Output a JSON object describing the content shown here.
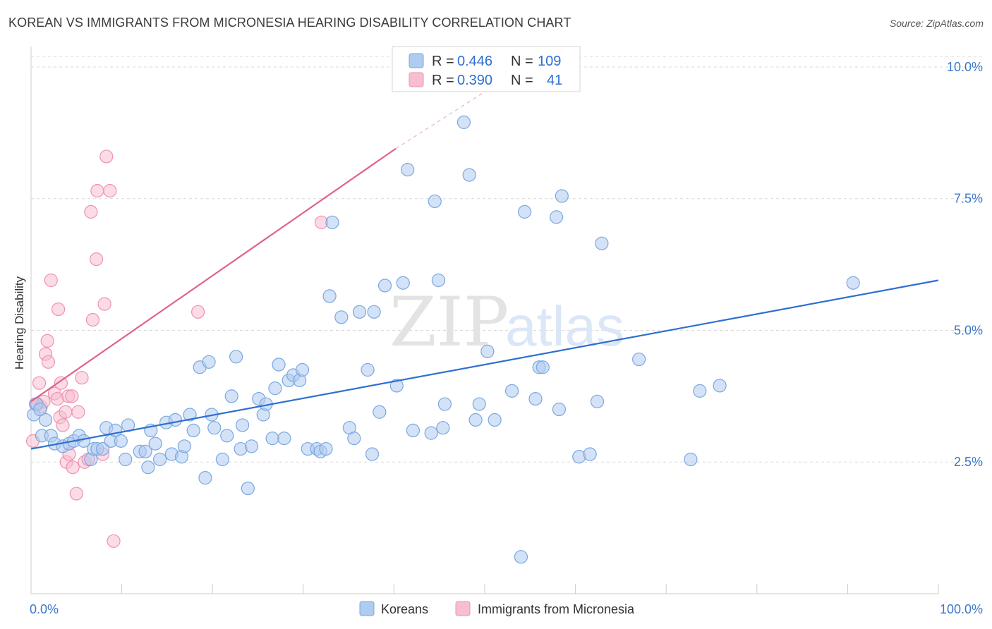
{
  "title": "KOREAN VS IMMIGRANTS FROM MICRONESIA HEARING DISABILITY CORRELATION CHART",
  "source": "Source: ZipAtlas.com",
  "watermark": {
    "zip": "ZIP",
    "atlas": "atlas"
  },
  "colors": {
    "blue_fill": "#aecbf0",
    "blue_stroke": "#7aa8e0",
    "blue_line": "#2f6fd0",
    "pink_fill": "#f7bdd0",
    "pink_stroke": "#ee92b0",
    "pink_line": "#e0628a",
    "grid": "#d9d9d9",
    "axis_text": "#3b78c9"
  },
  "legend": {
    "rows": [
      {
        "r_label": "R = ",
        "r_value": "0.446",
        "n_label": "N = ",
        "n_value": "109",
        "series": "Koreans"
      },
      {
        "r_label": "R = ",
        "r_value": "0.390",
        "n_label": "N = ",
        "n_value": "41",
        "series": "Immigrants from Micronesia"
      }
    ]
  },
  "chart_data": {
    "type": "scatter",
    "title": "KOREAN VS IMMIGRANTS FROM MICRONESIA HEARING DISABILITY CORRELATION CHART",
    "xlabel": "",
    "ylabel": "Hearing Disability",
    "xlim": [
      0,
      100
    ],
    "ylim": [
      0,
      10.2
    ],
    "x_tick_labels": [
      "0.0%",
      "100.0%"
    ],
    "y_ticks": [
      2.5,
      5.0,
      7.5,
      10.0
    ],
    "y_tick_labels": [
      "2.5%",
      "5.0%",
      "7.5%",
      "10.0%"
    ],
    "series": [
      {
        "name": "Koreans",
        "color": "#aecbf0",
        "trend": {
          "x": [
            0,
            100
          ],
          "y": [
            2.75,
            5.95
          ],
          "dashed_from": null
        },
        "points": [
          [
            0.3,
            3.4
          ],
          [
            0.6,
            3.6
          ],
          [
            1.0,
            3.5
          ],
          [
            1.2,
            3.0
          ],
          [
            1.6,
            3.3
          ],
          [
            2.2,
            3.0
          ],
          [
            2.6,
            2.85
          ],
          [
            3.5,
            2.8
          ],
          [
            4.2,
            2.85
          ],
          [
            4.7,
            2.9
          ],
          [
            5.3,
            3.0
          ],
          [
            5.8,
            2.9
          ],
          [
            6.6,
            2.55
          ],
          [
            6.9,
            2.75
          ],
          [
            7.3,
            2.75
          ],
          [
            7.9,
            2.75
          ],
          [
            8.3,
            3.15
          ],
          [
            8.8,
            2.9
          ],
          [
            9.3,
            3.1
          ],
          [
            9.9,
            2.9
          ],
          [
            10.4,
            2.55
          ],
          [
            10.7,
            3.2
          ],
          [
            12.0,
            2.7
          ],
          [
            12.6,
            2.7
          ],
          [
            12.9,
            2.4
          ],
          [
            13.2,
            3.1
          ],
          [
            13.7,
            2.85
          ],
          [
            14.2,
            2.55
          ],
          [
            14.9,
            3.25
          ],
          [
            15.5,
            2.65
          ],
          [
            15.9,
            3.3
          ],
          [
            16.6,
            2.6
          ],
          [
            16.9,
            2.8
          ],
          [
            17.5,
            3.4
          ],
          [
            17.9,
            3.1
          ],
          [
            18.6,
            4.3
          ],
          [
            19.2,
            2.2
          ],
          [
            19.6,
            4.4
          ],
          [
            19.9,
            3.4
          ],
          [
            20.2,
            3.15
          ],
          [
            21.1,
            2.55
          ],
          [
            21.6,
            3.0
          ],
          [
            22.1,
            3.75
          ],
          [
            22.6,
            4.5
          ],
          [
            23.1,
            2.75
          ],
          [
            23.3,
            3.2
          ],
          [
            23.9,
            2.0
          ],
          [
            24.3,
            2.8
          ],
          [
            25.1,
            3.7
          ],
          [
            25.6,
            3.4
          ],
          [
            25.9,
            3.6
          ],
          [
            26.6,
            2.95
          ],
          [
            26.9,
            3.9
          ],
          [
            27.3,
            4.35
          ],
          [
            27.9,
            2.95
          ],
          [
            28.4,
            4.05
          ],
          [
            28.9,
            4.15
          ],
          [
            29.6,
            4.05
          ],
          [
            29.9,
            4.25
          ],
          [
            30.5,
            2.75
          ],
          [
            31.5,
            2.75
          ],
          [
            31.9,
            2.7
          ],
          [
            32.5,
            2.75
          ],
          [
            32.9,
            5.65
          ],
          [
            33.2,
            7.05
          ],
          [
            34.2,
            5.25
          ],
          [
            35.1,
            3.15
          ],
          [
            35.6,
            2.95
          ],
          [
            36.2,
            5.35
          ],
          [
            37.1,
            4.25
          ],
          [
            37.6,
            2.65
          ],
          [
            37.8,
            5.35
          ],
          [
            38.4,
            3.45
          ],
          [
            39.0,
            5.85
          ],
          [
            40.3,
            3.95
          ],
          [
            41.0,
            5.9
          ],
          [
            41.5,
            8.05
          ],
          [
            42.1,
            3.1
          ],
          [
            44.1,
            3.05
          ],
          [
            44.5,
            7.45
          ],
          [
            44.9,
            5.95
          ],
          [
            45.4,
            3.15
          ],
          [
            45.6,
            3.6
          ],
          [
            47.7,
            8.95
          ],
          [
            48.3,
            7.95
          ],
          [
            49.0,
            3.3
          ],
          [
            49.4,
            3.6
          ],
          [
            50.3,
            4.6
          ],
          [
            51.1,
            3.3
          ],
          [
            53.0,
            3.85
          ],
          [
            54.0,
            0.7
          ],
          [
            54.4,
            7.25
          ],
          [
            55.6,
            3.7
          ],
          [
            56.0,
            4.3
          ],
          [
            56.4,
            4.3
          ],
          [
            57.9,
            7.15
          ],
          [
            58.2,
            3.5
          ],
          [
            58.5,
            7.55
          ],
          [
            60.4,
            2.6
          ],
          [
            61.6,
            2.65
          ],
          [
            62.4,
            3.65
          ],
          [
            62.9,
            6.65
          ],
          [
            67.0,
            4.45
          ],
          [
            72.7,
            2.55
          ],
          [
            73.7,
            3.85
          ],
          [
            75.9,
            3.95
          ],
          [
            90.6,
            5.9
          ]
        ]
      },
      {
        "name": "Immigrants from Micronesia",
        "color": "#f7bdd0",
        "trend": {
          "x": [
            0,
            40.2
          ],
          "y": [
            3.65,
            8.45
          ],
          "dashed_to": [
            50.2,
            9.55
          ]
        },
        "points": [
          [
            0.2,
            2.9
          ],
          [
            0.5,
            3.6
          ],
          [
            0.7,
            3.6
          ],
          [
            0.9,
            4.0
          ],
          [
            1.1,
            3.55
          ],
          [
            1.4,
            3.65
          ],
          [
            1.6,
            4.55
          ],
          [
            1.8,
            4.8
          ],
          [
            1.9,
            4.4
          ],
          [
            2.2,
            5.95
          ],
          [
            2.6,
            3.8
          ],
          [
            2.9,
            3.7
          ],
          [
            3.0,
            5.4
          ],
          [
            3.2,
            3.35
          ],
          [
            3.3,
            4.0
          ],
          [
            3.5,
            3.2
          ],
          [
            3.8,
            3.45
          ],
          [
            3.9,
            2.5
          ],
          [
            4.1,
            3.75
          ],
          [
            4.2,
            2.65
          ],
          [
            4.5,
            3.75
          ],
          [
            4.6,
            2.4
          ],
          [
            5.0,
            1.9
          ],
          [
            5.2,
            3.45
          ],
          [
            5.6,
            4.1
          ],
          [
            5.9,
            2.5
          ],
          [
            6.3,
            2.55
          ],
          [
            6.6,
            7.25
          ],
          [
            6.8,
            5.2
          ],
          [
            7.2,
            6.35
          ],
          [
            7.3,
            7.65
          ],
          [
            7.9,
            2.65
          ],
          [
            8.1,
            5.5
          ],
          [
            8.3,
            8.3
          ],
          [
            8.7,
            7.65
          ],
          [
            9.1,
            1.0
          ],
          [
            18.4,
            5.35
          ],
          [
            32.0,
            7.05
          ]
        ]
      }
    ]
  },
  "bottom_legend": [
    {
      "label": "Koreans"
    },
    {
      "label": "Immigrants from Micronesia"
    }
  ]
}
